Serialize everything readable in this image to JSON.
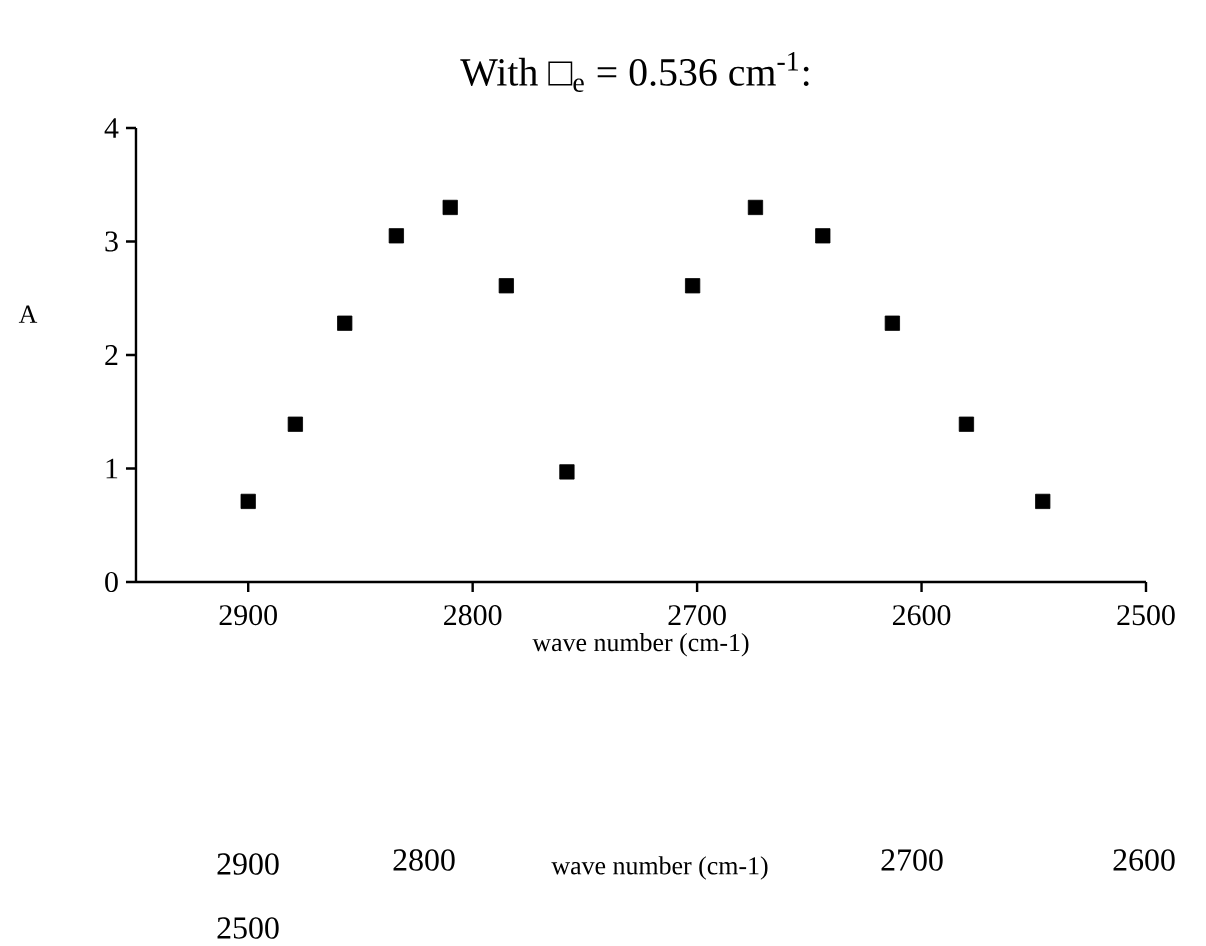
{
  "chart_data": {
    "type": "scatter",
    "title": "With □$_{e}$ = 0.536 cm$^{-1}$:",
    "xlabel": "wave number (cm-1)",
    "ylabel": "A",
    "series": [
      {
        "color": "#000000",
        "x": [
          2900,
          2879,
          2857,
          2834,
          2810,
          2785,
          2758,
          2702,
          2674,
          2644,
          2613,
          2580,
          2546
        ],
        "values": [
          0.71,
          1.39,
          2.28,
          3.05,
          3.3,
          2.61,
          0.97,
          2.61,
          3.3,
          3.05,
          2.28,
          1.39,
          0.71
        ]
      }
    ],
    "xlim": [
      2950,
      2500
    ],
    "xticks": [
      2900,
      2800,
      2700,
      2600,
      2500
    ],
    "ylim": [
      0,
      4
    ],
    "yticks": [
      0,
      1,
      2,
      3,
      4
    ],
    "grid": false,
    "marker": "square",
    "annotations": [
      "2900",
      "2800",
      "wave number (cm-1)",
      "2700",
      "2600",
      "2500"
    ]
  }
}
